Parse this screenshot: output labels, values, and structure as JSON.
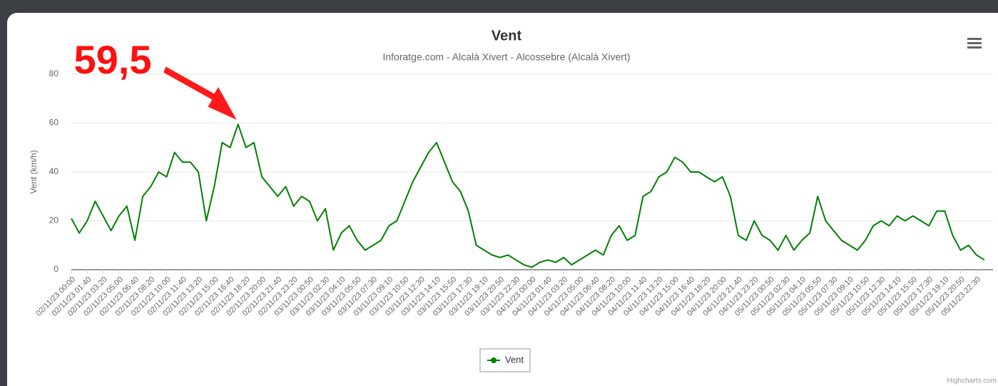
{
  "chart_data": {
    "type": "line",
    "title": "Vent",
    "subtitle": "Inforatge.com - Alcalà Xivert - Alcossebre (Alcalà Xivert)",
    "y_axis_label": "Vent (km/h)",
    "annotation": "59,5",
    "credits": "Highcharts.com",
    "ylim": [
      0,
      80
    ],
    "yticks": [
      0,
      20,
      40,
      60,
      80
    ],
    "grid": true,
    "legend": "bottom",
    "categories": [
      "02/11/23 00:00",
      null,
      "02/11/23 01:40",
      null,
      "02/11/23 03:20",
      null,
      "02/11/23 05:00",
      null,
      "02/11/23 06:40",
      null,
      "02/11/23 08:20",
      null,
      "02/11/23 10:00",
      null,
      "02/11/23 11:40",
      null,
      "02/11/23 13:20",
      null,
      "02/11/23 15:00",
      null,
      "02/11/23 16:40",
      null,
      "02/11/23 18:20",
      null,
      "02/11/23 20:00",
      null,
      "02/11/23 21:40",
      null,
      "02/11/23 23:20",
      null,
      "03/11/23 00:50",
      null,
      "03/11/23 02:30",
      null,
      "03/11/23 04:10",
      null,
      "03/11/23 05:50",
      null,
      "03/11/23 07:30",
      null,
      "03/11/23 09:10",
      null,
      "03/11/23 10:50",
      null,
      "03/11/23 12:30",
      null,
      "03/11/23 14:10",
      null,
      "03/11/23 15:50",
      null,
      "03/11/23 17:30",
      null,
      "03/11/23 19:10",
      null,
      "03/11/23 20:50",
      null,
      "03/11/23 22:30",
      null,
      "04/11/23 00:00",
      null,
      "04/11/23 01:40",
      null,
      "04/11/23 03:20",
      null,
      "04/11/23 05:00",
      null,
      "04/11/23 06:40",
      null,
      "04/11/23 08:20",
      null,
      "04/11/23 10:00",
      null,
      "04/11/23 11:40",
      null,
      "04/11/23 13:20",
      null,
      "04/11/23 15:00",
      null,
      "04/11/23 16:40",
      null,
      "04/11/23 18:20",
      null,
      "04/11/23 20:00",
      null,
      "04/11/23 21:40",
      null,
      "04/11/23 23:20",
      null,
      "05/11/23 00:50",
      null,
      "05/11/23 02:30",
      null,
      "05/11/23 04:10",
      null,
      "05/11/23 05:50",
      null,
      "05/11/23 07:30",
      null,
      "05/11/23 09:10",
      null,
      "05/11/23 10:50",
      null,
      "05/11/23 12:30",
      null,
      "05/11/23 14:10",
      null,
      "05/11/23 15:50",
      null,
      "05/11/23 17:30",
      null,
      "05/11/23 19:10",
      null,
      "05/11/23 20:50",
      null,
      "05/11/23 22:30",
      null
    ],
    "series": [
      {
        "name": "Vent",
        "color": "#008000",
        "values": [
          21,
          15,
          20,
          28,
          22,
          16,
          22,
          26,
          12,
          30,
          34,
          40,
          38,
          48,
          44,
          44,
          40,
          20,
          34,
          52,
          50,
          59.5,
          50,
          52,
          38,
          34,
          30,
          34,
          26,
          30,
          28,
          20,
          25,
          8,
          15,
          18,
          12,
          8,
          10,
          12,
          18,
          20,
          28,
          36,
          42,
          48,
          52,
          44,
          36,
          32,
          24,
          10,
          8,
          6,
          5,
          6,
          4,
          2,
          1,
          3,
          4,
          3,
          5,
          2,
          4,
          6,
          8,
          6,
          14,
          18,
          12,
          14,
          30,
          32,
          38,
          40,
          46,
          44,
          40,
          40,
          38,
          36,
          38,
          30,
          14,
          12,
          20,
          14,
          12,
          8,
          14,
          8,
          12,
          15,
          30,
          20,
          16,
          12,
          10,
          8,
          12,
          18,
          20,
          18,
          22,
          20,
          22,
          20,
          18,
          24,
          24,
          14,
          8,
          10,
          6,
          4
        ]
      }
    ]
  }
}
